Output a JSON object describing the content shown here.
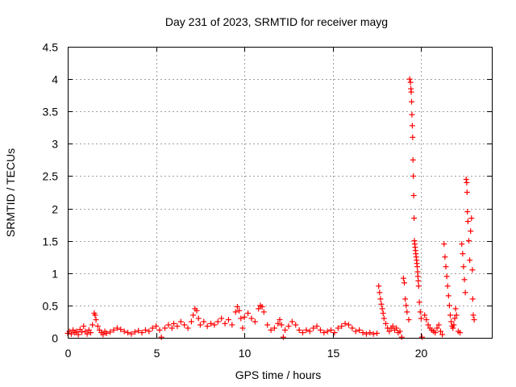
{
  "chart_data": {
    "type": "scatter",
    "title": "Day 231 of 2023, SRMTID for receiver mayg",
    "xlabel": "GPS time / hours",
    "ylabel": "SRMTID / TECUs",
    "xlim": [
      0,
      24
    ],
    "ylim": [
      0,
      4.5
    ],
    "x_ticks": [
      0,
      5,
      10,
      15,
      20
    ],
    "y_ticks": [
      0,
      0.5,
      1,
      1.5,
      2,
      2.5,
      3,
      3.5,
      4,
      4.5
    ],
    "grid": true,
    "marker": "plus",
    "color": "#ff0000",
    "series": [
      {
        "name": "SRMTID",
        "points": [
          [
            0.0,
            0.07
          ],
          [
            0.1,
            0.1
          ],
          [
            0.2,
            0.06
          ],
          [
            0.3,
            0.12
          ],
          [
            0.4,
            0.08
          ],
          [
            0.5,
            0.1
          ],
          [
            0.6,
            0.05
          ],
          [
            0.7,
            0.13
          ],
          [
            0.8,
            0.09
          ],
          [
            0.9,
            0.18
          ],
          [
            1.0,
            0.1
          ],
          [
            1.1,
            0.06
          ],
          [
            1.2,
            0.12
          ],
          [
            1.3,
            0.08
          ],
          [
            1.4,
            0.2
          ],
          [
            1.5,
            0.38
          ],
          [
            1.55,
            0.35
          ],
          [
            1.6,
            0.28
          ],
          [
            1.7,
            0.18
          ],
          [
            1.8,
            0.12
          ],
          [
            1.9,
            0.08
          ],
          [
            2.0,
            0.05
          ],
          [
            2.1,
            0.1
          ],
          [
            2.2,
            0.07
          ],
          [
            2.4,
            0.09
          ],
          [
            2.6,
            0.12
          ],
          [
            2.8,
            0.15
          ],
          [
            3.0,
            0.13
          ],
          [
            3.2,
            0.1
          ],
          [
            3.4,
            0.08
          ],
          [
            3.6,
            0.06
          ],
          [
            3.8,
            0.09
          ],
          [
            4.0,
            0.11
          ],
          [
            4.2,
            0.08
          ],
          [
            4.4,
            0.12
          ],
          [
            4.6,
            0.1
          ],
          [
            4.8,
            0.15
          ],
          [
            5.0,
            0.18
          ],
          [
            5.2,
            0.12
          ],
          [
            5.3,
            0.01
          ],
          [
            5.5,
            0.15
          ],
          [
            5.7,
            0.2
          ],
          [
            5.9,
            0.15
          ],
          [
            6.0,
            0.22
          ],
          [
            6.2,
            0.18
          ],
          [
            6.4,
            0.25
          ],
          [
            6.6,
            0.2
          ],
          [
            6.8,
            0.15
          ],
          [
            7.0,
            0.25
          ],
          [
            7.1,
            0.35
          ],
          [
            7.2,
            0.45
          ],
          [
            7.3,
            0.42
          ],
          [
            7.4,
            0.3
          ],
          [
            7.5,
            0.2
          ],
          [
            7.7,
            0.25
          ],
          [
            7.9,
            0.18
          ],
          [
            8.1,
            0.22
          ],
          [
            8.3,
            0.2
          ],
          [
            8.5,
            0.25
          ],
          [
            8.7,
            0.3
          ],
          [
            8.9,
            0.22
          ],
          [
            9.1,
            0.28
          ],
          [
            9.3,
            0.2
          ],
          [
            9.5,
            0.4
          ],
          [
            9.6,
            0.48
          ],
          [
            9.7,
            0.42
          ],
          [
            9.8,
            0.3
          ],
          [
            9.9,
            0.15
          ],
          [
            10.0,
            0.32
          ],
          [
            10.2,
            0.38
          ],
          [
            10.4,
            0.3
          ],
          [
            10.6,
            0.25
          ],
          [
            10.8,
            0.45
          ],
          [
            10.9,
            0.5
          ],
          [
            11.0,
            0.48
          ],
          [
            11.1,
            0.4
          ],
          [
            11.3,
            0.2
          ],
          [
            11.5,
            0.12
          ],
          [
            11.7,
            0.15
          ],
          [
            11.9,
            0.22
          ],
          [
            12.0,
            0.28
          ],
          [
            12.1,
            0.2
          ],
          [
            12.2,
            0.01
          ],
          [
            12.3,
            0.12
          ],
          [
            12.5,
            0.18
          ],
          [
            12.7,
            0.25
          ],
          [
            12.9,
            0.2
          ],
          [
            13.1,
            0.12
          ],
          [
            13.3,
            0.08
          ],
          [
            13.5,
            0.12
          ],
          [
            13.7,
            0.1
          ],
          [
            13.9,
            0.15
          ],
          [
            14.1,
            0.18
          ],
          [
            14.3,
            0.12
          ],
          [
            14.5,
            0.08
          ],
          [
            14.7,
            0.1
          ],
          [
            14.9,
            0.12
          ],
          [
            15.1,
            0.08
          ],
          [
            15.3,
            0.15
          ],
          [
            15.5,
            0.18
          ],
          [
            15.7,
            0.22
          ],
          [
            15.9,
            0.2
          ],
          [
            16.1,
            0.15
          ],
          [
            16.3,
            0.1
          ],
          [
            16.5,
            0.12
          ],
          [
            16.7,
            0.08
          ],
          [
            16.9,
            0.06
          ],
          [
            17.1,
            0.08
          ],
          [
            17.3,
            0.06
          ],
          [
            17.5,
            0.07
          ],
          [
            17.6,
            0.8
          ],
          [
            17.65,
            0.7
          ],
          [
            17.7,
            0.6
          ],
          [
            17.75,
            0.52
          ],
          [
            17.8,
            0.45
          ],
          [
            17.85,
            0.38
          ],
          [
            17.9,
            0.3
          ],
          [
            18.0,
            0.22
          ],
          [
            18.1,
            0.15
          ],
          [
            18.2,
            0.1
          ],
          [
            18.3,
            0.15
          ],
          [
            18.4,
            0.18
          ],
          [
            18.5,
            0.12
          ],
          [
            18.6,
            0.15
          ],
          [
            18.7,
            0.08
          ],
          [
            18.8,
            0.1
          ],
          [
            18.9,
            0.01
          ],
          [
            19.0,
            0.92
          ],
          [
            19.05,
            0.85
          ],
          [
            19.1,
            0.6
          ],
          [
            19.15,
            0.5
          ],
          [
            19.2,
            0.4
          ],
          [
            19.3,
            0.28
          ],
          [
            19.35,
            4.0
          ],
          [
            19.4,
            3.95
          ],
          [
            19.42,
            3.85
          ],
          [
            19.44,
            3.8
          ],
          [
            19.46,
            3.65
          ],
          [
            19.48,
            3.45
          ],
          [
            19.5,
            3.28
          ],
          [
            19.52,
            3.1
          ],
          [
            19.54,
            2.75
          ],
          [
            19.56,
            2.5
          ],
          [
            19.58,
            2.2
          ],
          [
            19.6,
            1.85
          ],
          [
            19.62,
            1.5
          ],
          [
            19.64,
            1.45
          ],
          [
            19.66,
            1.4
          ],
          [
            19.68,
            1.35
          ],
          [
            19.7,
            1.3
          ],
          [
            19.72,
            1.25
          ],
          [
            19.74,
            1.2
          ],
          [
            19.76,
            1.15
          ],
          [
            19.78,
            1.1
          ],
          [
            19.8,
            1.02
          ],
          [
            19.82,
            0.95
          ],
          [
            19.84,
            0.88
          ],
          [
            19.86,
            0.8
          ],
          [
            19.9,
            0.55
          ],
          [
            19.95,
            0.4
          ],
          [
            20.0,
            0.3
          ],
          [
            20.05,
            0.01
          ],
          [
            20.2,
            0.35
          ],
          [
            20.3,
            0.28
          ],
          [
            20.4,
            0.2
          ],
          [
            20.5,
            0.15
          ],
          [
            20.6,
            0.12
          ],
          [
            20.7,
            0.1
          ],
          [
            20.8,
            0.08
          ],
          [
            20.9,
            0.15
          ],
          [
            21.0,
            0.2
          ],
          [
            21.1,
            0.1
          ],
          [
            21.2,
            0.05
          ],
          [
            21.3,
            1.45
          ],
          [
            21.35,
            1.25
          ],
          [
            21.4,
            1.1
          ],
          [
            21.45,
            0.95
          ],
          [
            21.5,
            0.8
          ],
          [
            21.55,
            0.65
          ],
          [
            21.6,
            0.5
          ],
          [
            21.65,
            0.35
          ],
          [
            21.7,
            0.25
          ],
          [
            21.75,
            0.18
          ],
          [
            21.8,
            0.15
          ],
          [
            21.85,
            0.2
          ],
          [
            21.9,
            0.3
          ],
          [
            21.95,
            0.45
          ],
          [
            22.0,
            0.35
          ],
          [
            22.1,
            0.1
          ],
          [
            22.2,
            0.08
          ],
          [
            22.3,
            1.45
          ],
          [
            22.35,
            1.3
          ],
          [
            22.4,
            1.1
          ],
          [
            22.45,
            0.9
          ],
          [
            22.5,
            0.7
          ],
          [
            22.55,
            2.45
          ],
          [
            22.58,
            2.4
          ],
          [
            22.6,
            2.25
          ],
          [
            22.62,
            1.95
          ],
          [
            22.65,
            1.8
          ],
          [
            22.7,
            1.5
          ],
          [
            22.75,
            1.2
          ],
          [
            22.8,
            1.65
          ],
          [
            22.85,
            1.85
          ],
          [
            22.9,
            1.05
          ],
          [
            22.92,
            0.6
          ],
          [
            22.95,
            0.35
          ],
          [
            23.0,
            0.28
          ]
        ]
      }
    ]
  }
}
